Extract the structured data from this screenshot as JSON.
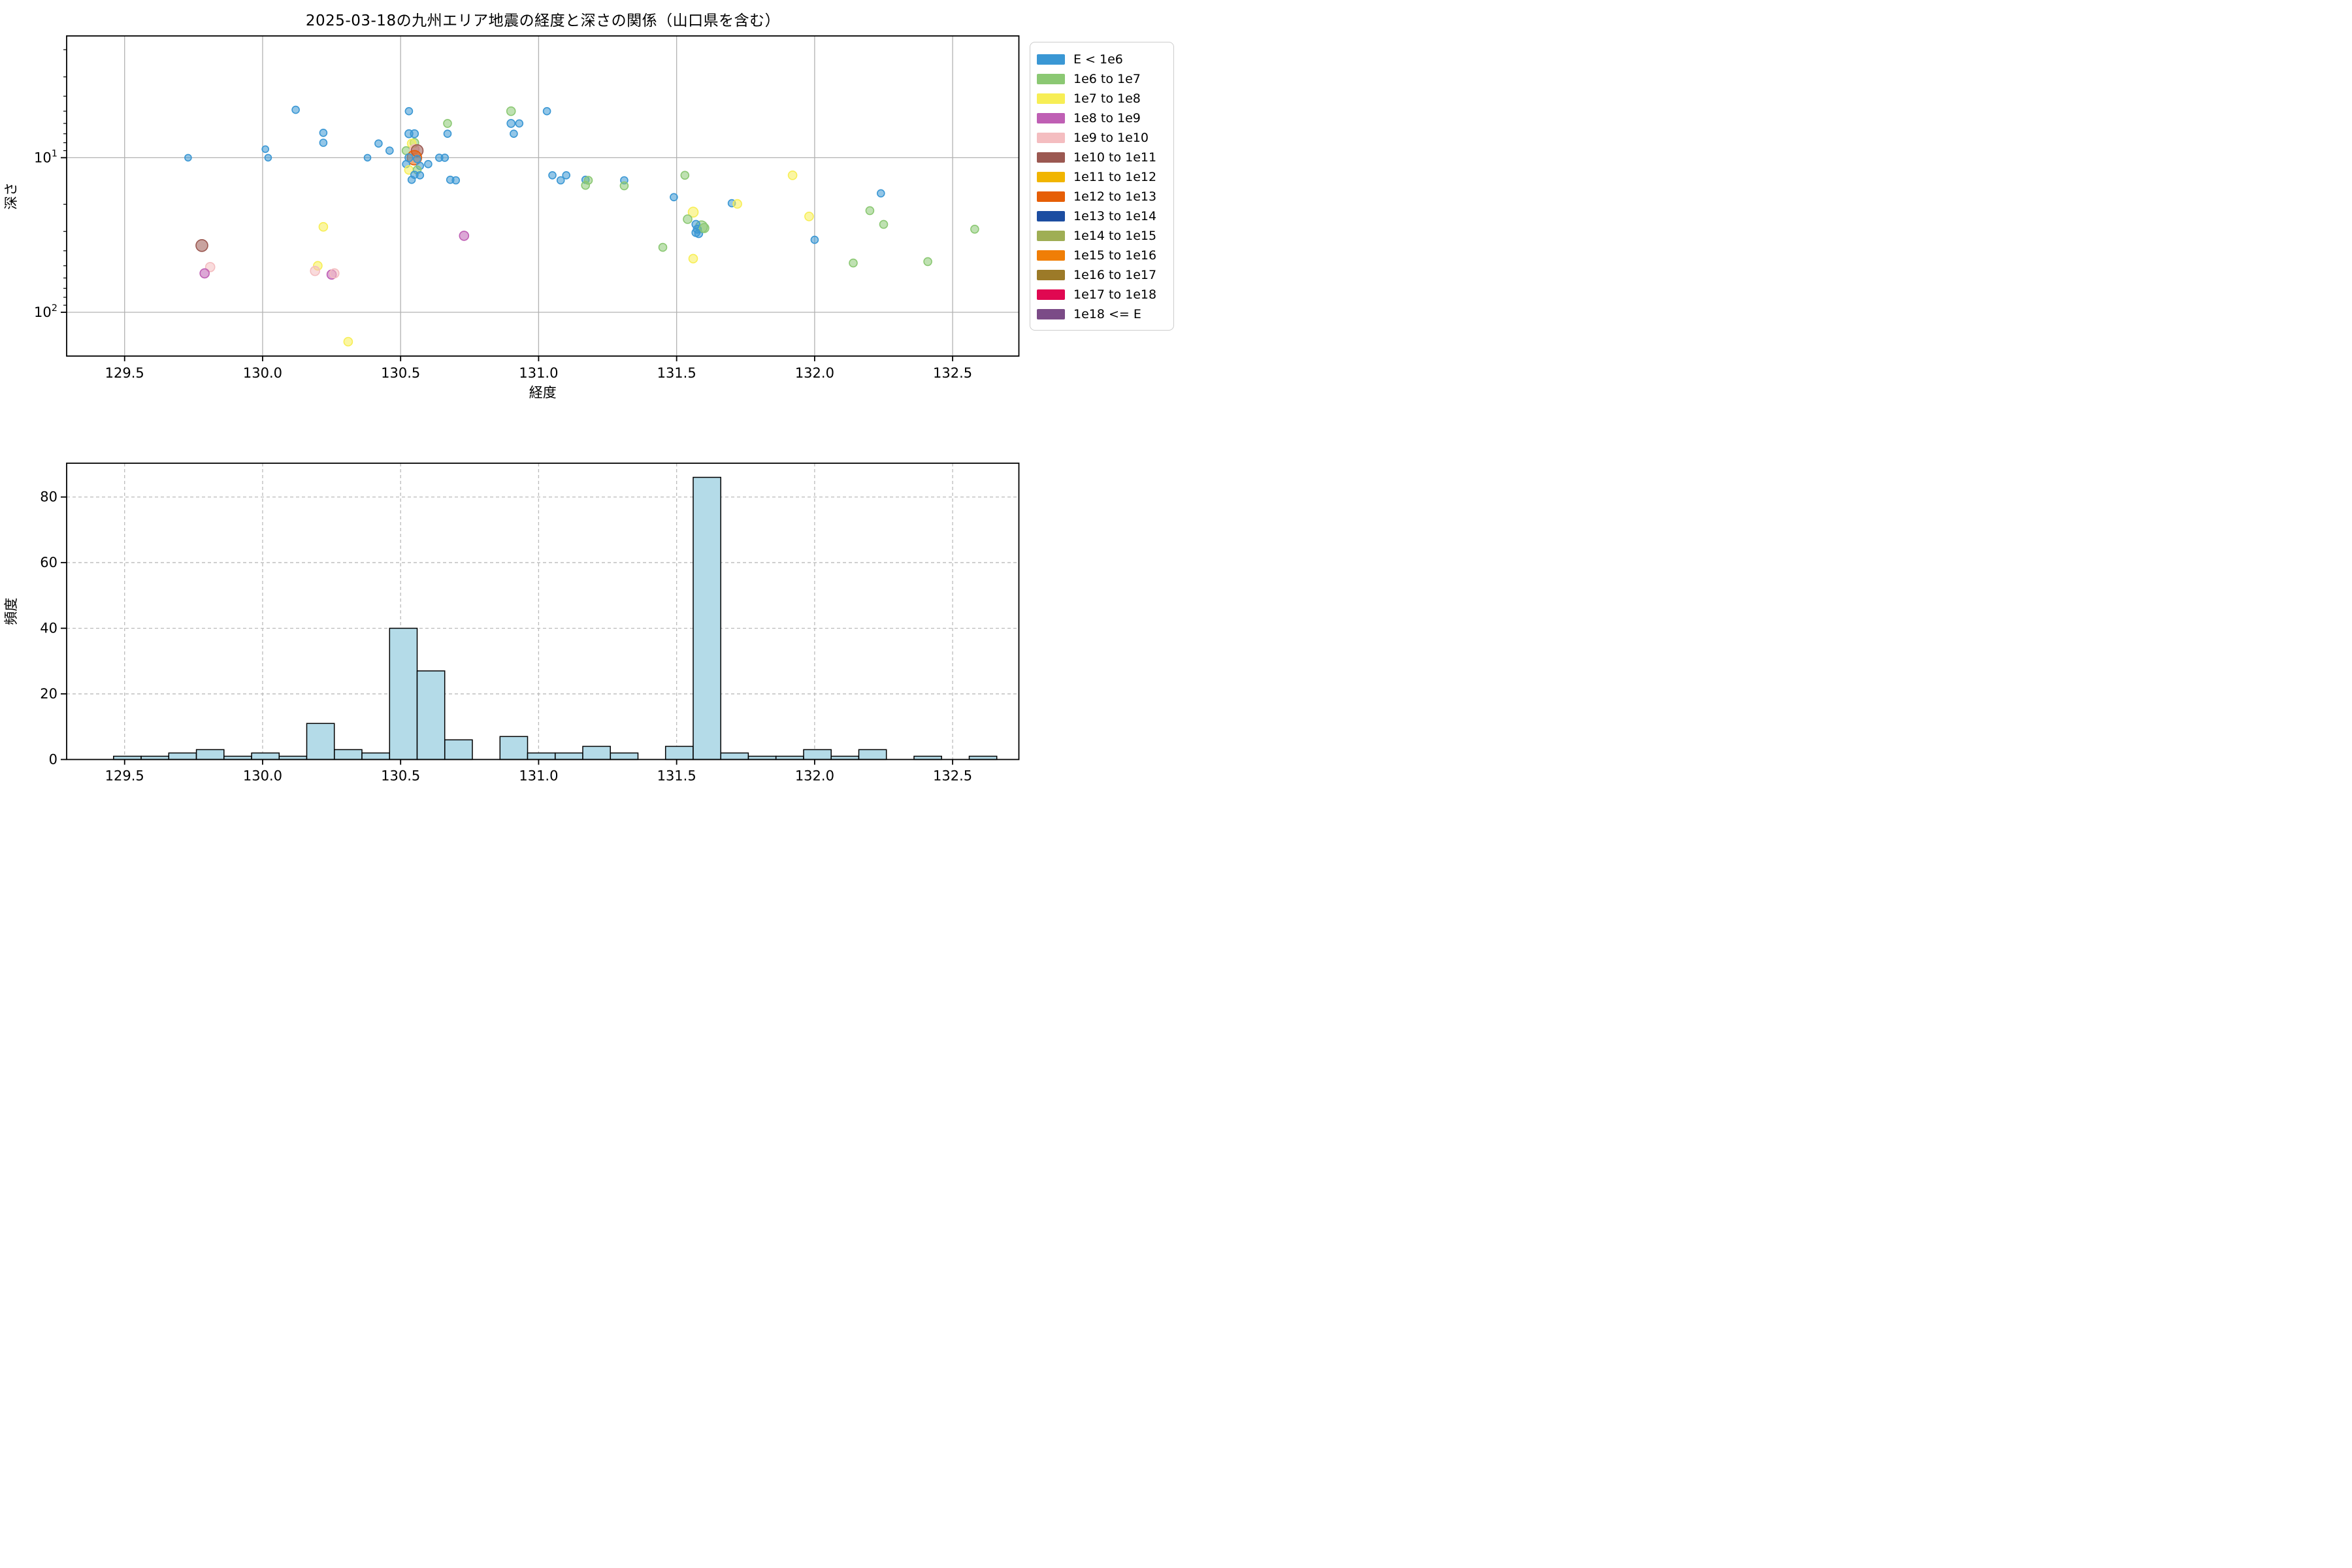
{
  "title": "2025-03-18の九州エリア地震の経度と深さの関係（山口県を含む）",
  "scatter": {
    "xlabel": "経度",
    "ylabel": "深さ",
    "x_tick_labels": [
      "129.5",
      "130.0",
      "130.5",
      "131.0",
      "131.5",
      "132.0",
      "132.5"
    ],
    "x_tick_values": [
      129.5,
      130.0,
      130.5,
      131.0,
      131.5,
      132.0,
      132.5
    ],
    "y_tick_labels": [
      {
        "base": "10",
        "exp": "1"
      },
      {
        "base": "10",
        "exp": "2"
      }
    ],
    "y_tick_values": [
      10,
      100
    ],
    "y_minor_tick_values": [
      2,
      3,
      4,
      5,
      6,
      7,
      8,
      9,
      20,
      30,
      40,
      50,
      60,
      70,
      80,
      90
    ],
    "xlim": [
      129.29,
      132.74
    ],
    "ylim": [
      1.63,
      192
    ],
    "y_scale": "log-inverted",
    "grid_color": "#b2b2b2"
  },
  "histogram": {
    "xlabel": "経度",
    "ylabel": "頻度",
    "x_tick_labels": [
      "129.5",
      "130.0",
      "130.5",
      "131.0",
      "131.5",
      "132.0",
      "132.5"
    ],
    "x_tick_values": [
      129.5,
      130.0,
      130.5,
      131.0,
      131.5,
      132.0,
      132.5
    ],
    "y_tick_labels": [
      "0",
      "20",
      "40",
      "60",
      "80"
    ],
    "y_tick_values": [
      0,
      20,
      40,
      60,
      80
    ],
    "xlim": [
      129.29,
      132.74
    ],
    "ylim": [
      0,
      90.3
    ],
    "bar_fill": "#b4dbe8",
    "bar_edge": "#000000",
    "grid_color": "#bbbbbb"
  },
  "legend": {
    "items": [
      {
        "label": "E < 1e6",
        "color": "#3a97d4"
      },
      {
        "label": "1e6 to 1e7",
        "color": "#8bc873"
      },
      {
        "label": "1e7 to 1e8",
        "color": "#f7ee55"
      },
      {
        "label": "1e8 to 1e9",
        "color": "#bf5fb4"
      },
      {
        "label": "1e9 to 1e10",
        "color": "#f4bdc0"
      },
      {
        "label": "1e10 to 1e11",
        "color": "#9b5851"
      },
      {
        "label": "1e11 to 1e12",
        "color": "#f1b500"
      },
      {
        "label": "1e12 to 1e13",
        "color": "#e65e06"
      },
      {
        "label": "1e13 to 1e14",
        "color": "#1c4da1"
      },
      {
        "label": "1e14 to 1e15",
        "color": "#9fae54"
      },
      {
        "label": "1e15 to 1e16",
        "color": "#f07e06"
      },
      {
        "label": "1e16 to 1e17",
        "color": "#9c7a28"
      },
      {
        "label": "1e17 to 1e18",
        "color": "#e00851"
      },
      {
        "label": "1e18 <= E",
        "color": "#7b4b87"
      }
    ]
  },
  "chart_data": [
    {
      "type": "scatter",
      "title": "2025-03-18の九州エリア地震の経度と深さの関係（山口県を含む）",
      "xlabel": "経度",
      "ylabel": "深さ",
      "x_axis": "longitude_deg",
      "y_axis": "depth_km",
      "y_scale": "log, inverted (depth increases downward)",
      "xlim": [
        129.29,
        132.74
      ],
      "ylim": [
        1.63,
        192
      ],
      "legend_position": "outside upper right",
      "grid": true,
      "point_format": "[longitude, depth_km, energy_category_index, marker_radius_px]",
      "energy_categories": [
        "E < 1e6",
        "1e6 to 1e7",
        "1e7 to 1e8",
        "1e8 to 1e9",
        "1e9 to 1e10",
        "1e10 to 1e11",
        "1e11 to 1e12",
        "1e12 to 1e13",
        "1e13 to 1e14",
        "1e14 to 1e15",
        "1e15 to 1e16",
        "1e16 to 1e17",
        "1e17 to 1e18",
        "1e18 <= E"
      ],
      "points": [
        [
          129.73,
          10.0,
          0,
          5
        ],
        [
          130.02,
          10.0,
          0,
          5
        ],
        [
          130.01,
          8.8,
          0,
          5
        ],
        [
          130.12,
          4.9,
          0,
          5.5
        ],
        [
          130.22,
          6.9,
          0,
          5.5
        ],
        [
          130.22,
          8.0,
          0,
          5.5
        ],
        [
          129.78,
          37,
          5,
          9
        ],
        [
          129.81,
          51,
          4,
          7
        ],
        [
          129.79,
          56,
          3,
          7
        ],
        [
          130.22,
          28,
          2,
          6.5
        ],
        [
          130.2,
          50,
          2,
          6.5
        ],
        [
          130.19,
          54,
          4,
          7
        ],
        [
          130.25,
          57,
          3,
          7
        ],
        [
          130.26,
          56,
          4,
          7
        ],
        [
          130.31,
          155,
          2,
          6.5
        ],
        [
          130.38,
          10.0,
          0,
          5
        ],
        [
          130.42,
          8.1,
          0,
          5.5
        ],
        [
          130.46,
          9.0,
          0,
          5.5
        ],
        [
          130.53,
          5.0,
          0,
          5.5
        ],
        [
          130.53,
          7.0,
          0,
          6
        ],
        [
          130.55,
          7.0,
          0,
          6
        ],
        [
          130.55,
          8.0,
          1,
          6.5
        ],
        [
          130.54,
          8.1,
          2,
          6.5
        ],
        [
          130.52,
          9.0,
          1,
          6
        ],
        [
          130.55,
          8.8,
          4,
          7
        ],
        [
          130.56,
          9.0,
          5,
          9
        ],
        [
          130.55,
          10.0,
          7,
          11
        ],
        [
          130.53,
          10.0,
          0,
          6
        ],
        [
          130.56,
          10.2,
          0,
          5.5
        ],
        [
          130.64,
          10.0,
          0,
          5.5
        ],
        [
          130.66,
          10.0,
          0,
          5.5
        ],
        [
          130.52,
          11.0,
          0,
          5.5
        ],
        [
          130.57,
          11.3,
          0,
          5.5
        ],
        [
          130.6,
          11.0,
          0,
          5.5
        ],
        [
          130.53,
          12.0,
          2,
          6.5
        ],
        [
          130.56,
          12.0,
          1,
          6
        ],
        [
          130.55,
          12.9,
          0,
          5.5
        ],
        [
          130.57,
          13.0,
          0,
          5.5
        ],
        [
          130.54,
          13.9,
          0,
          5.5
        ],
        [
          130.68,
          13.9,
          0,
          5.5
        ],
        [
          130.7,
          14.0,
          0,
          5.5
        ],
        [
          130.67,
          6.0,
          1,
          6
        ],
        [
          130.67,
          7.0,
          0,
          5.5
        ],
        [
          130.9,
          5.0,
          1,
          6.5
        ],
        [
          131.03,
          5.0,
          0,
          5.5
        ],
        [
          130.9,
          6.0,
          0,
          6
        ],
        [
          130.93,
          6.0,
          0,
          5.5
        ],
        [
          130.91,
          7.0,
          0,
          5.5
        ],
        [
          130.73,
          32,
          3,
          7
        ],
        [
          131.05,
          13.0,
          0,
          5.5
        ],
        [
          131.08,
          14.0,
          0,
          5.5
        ],
        [
          131.1,
          13.0,
          0,
          5.5
        ],
        [
          131.17,
          13.9,
          0,
          5.5
        ],
        [
          131.18,
          14.0,
          1,
          6
        ],
        [
          131.17,
          15.1,
          1,
          6
        ],
        [
          131.31,
          14.0,
          0,
          5.5
        ],
        [
          131.31,
          15.2,
          1,
          6
        ],
        [
          131.53,
          13.0,
          1,
          6
        ],
        [
          131.49,
          18,
          0,
          5.5
        ],
        [
          131.7,
          19.7,
          0,
          5.5
        ],
        [
          131.72,
          19.9,
          2,
          6.5
        ],
        [
          131.56,
          22.5,
          2,
          7.5
        ],
        [
          131.54,
          25,
          1,
          6.5
        ],
        [
          131.59,
          28,
          1,
          9
        ],
        [
          131.57,
          27,
          0,
          6
        ],
        [
          131.575,
          29,
          0,
          6
        ],
        [
          131.57,
          30.5,
          0,
          6
        ],
        [
          131.58,
          31,
          0,
          6
        ],
        [
          131.6,
          28.5,
          1,
          7
        ],
        [
          131.45,
          38,
          1,
          6
        ],
        [
          131.56,
          45,
          2,
          6.5
        ],
        [
          131.92,
          13,
          2,
          6.5
        ],
        [
          131.98,
          24,
          2,
          6.5
        ],
        [
          132.2,
          22,
          1,
          6
        ],
        [
          132.24,
          17,
          0,
          5.5
        ],
        [
          132.25,
          27,
          1,
          6
        ],
        [
          132.0,
          34,
          0,
          5.5
        ],
        [
          132.14,
          48,
          1,
          6
        ],
        [
          132.41,
          47,
          1,
          6
        ],
        [
          132.58,
          29,
          1,
          6
        ]
      ]
    },
    {
      "type": "bar",
      "subtype": "histogram",
      "xlabel": "経度",
      "ylabel": "頻度",
      "xlim": [
        129.29,
        132.74
      ],
      "ylim": [
        0,
        90.3
      ],
      "grid": "dashed",
      "bin_start": 129.46,
      "bin_width": 0.1,
      "counts": [
        1,
        1,
        2,
        3,
        1,
        2,
        1,
        11,
        3,
        2,
        40,
        27,
        6,
        0,
        7,
        2,
        2,
        4,
        2,
        0,
        4,
        86,
        2,
        1,
        1,
        3,
        1,
        3,
        0,
        1,
        0,
        1
      ]
    }
  ]
}
